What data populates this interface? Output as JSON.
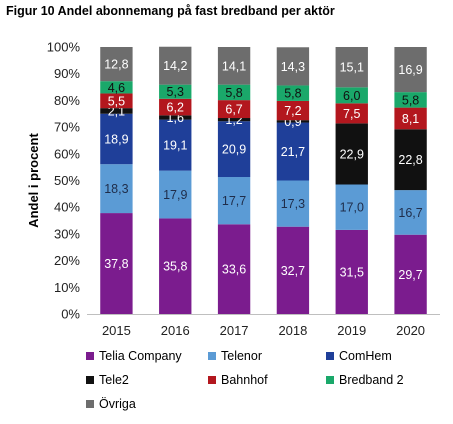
{
  "figure": {
    "title": "Figur 10 Andel abonnemang på fast bredband per aktör"
  },
  "chart_data": {
    "type": "bar",
    "stacked": true,
    "ylabel": "Andel i procent",
    "ylim": [
      0,
      100
    ],
    "yticks": [
      "0%",
      "10%",
      "20%",
      "30%",
      "40%",
      "50%",
      "60%",
      "70%",
      "80%",
      "90%",
      "100%"
    ],
    "categories": [
      "2015",
      "2016",
      "2017",
      "2018",
      "2019",
      "2020"
    ],
    "series": [
      {
        "name": "Telia Company",
        "color": "#7b1c8e",
        "label_color": "#ffffff",
        "values": [
          37.8,
          35.8,
          33.6,
          32.7,
          31.5,
          29.7
        ],
        "labels": [
          "37,8",
          "35,8",
          "33,6",
          "32,7",
          "31,5",
          "29,7"
        ]
      },
      {
        "name": "Telenor",
        "color": "#5b9bd5",
        "label_color": "#1f2d4a",
        "values": [
          18.3,
          17.9,
          17.7,
          17.3,
          17.0,
          16.7
        ],
        "labels": [
          "18,3",
          "17,9",
          "17,7",
          "17,3",
          "17,0",
          "16,7"
        ]
      },
      {
        "name": "ComHem",
        "color": "#1f3f99",
        "label_color": "#ffffff",
        "values": [
          18.9,
          19.1,
          20.9,
          21.7,
          0,
          0
        ],
        "labels": [
          "18,9",
          "19,1",
          "20,9",
          "21,7",
          "",
          ""
        ]
      },
      {
        "name": "Tele2",
        "color": "#111111",
        "label_color": "#ffffff",
        "values": [
          2.1,
          1.6,
          1.2,
          0.9,
          22.9,
          22.8
        ],
        "labels": [
          "2,1",
          "1,6",
          "1,2",
          "0,9",
          "22,9",
          "22,8"
        ]
      },
      {
        "name": "Bahnhof",
        "color": "#b3171e",
        "label_color": "#ffffff",
        "values": [
          5.5,
          6.2,
          6.7,
          7.2,
          7.5,
          8.1
        ],
        "labels": [
          "5,5",
          "6,2",
          "6,7",
          "7,2",
          "7,5",
          "8,1"
        ]
      },
      {
        "name": "Bredband 2",
        "color": "#1aa86a",
        "label_color": "#111111",
        "values": [
          4.6,
          5.3,
          5.8,
          5.8,
          6.0,
          5.8
        ],
        "labels": [
          "4,6",
          "5,3",
          "5,8",
          "5,8",
          "6,0",
          "5,8"
        ]
      },
      {
        "name": "Övriga",
        "color": "#6d6d6d",
        "label_color": "#ffffff",
        "values": [
          12.8,
          14.2,
          14.1,
          14.3,
          15.1,
          16.9
        ],
        "labels": [
          "12,8",
          "14,2",
          "14,1",
          "14,3",
          "15,1",
          "16,9"
        ]
      }
    ],
    "legend": {
      "position": "bottom"
    }
  }
}
